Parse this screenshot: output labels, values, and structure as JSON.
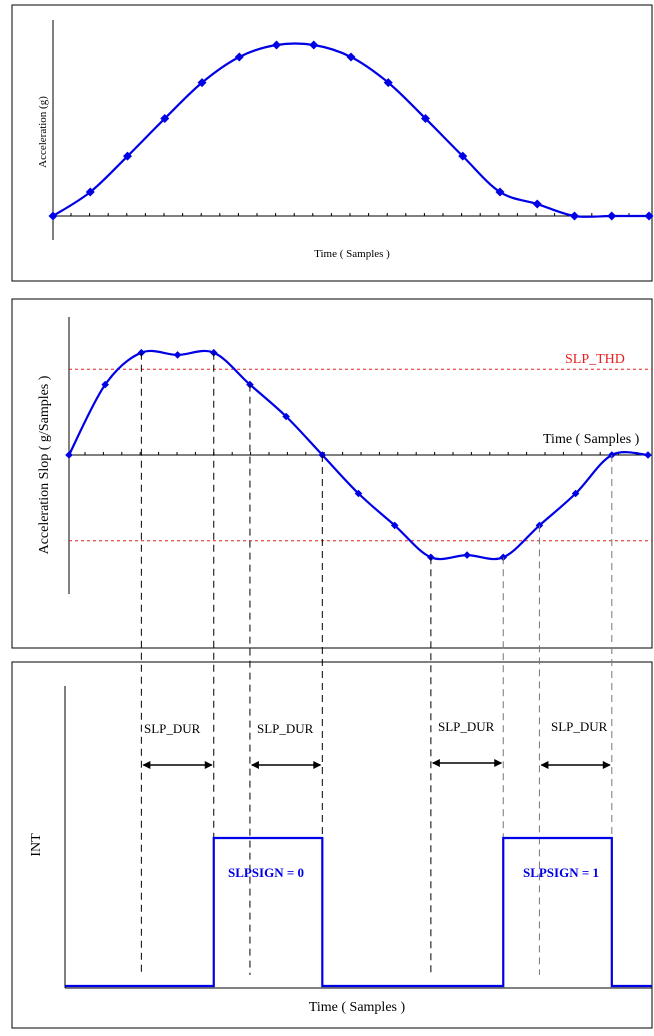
{
  "panel1": {
    "ylabel": "Acceleration (g)",
    "xlabel": "Time ( Samples )",
    "chart_data": {
      "type": "line",
      "x": [
        0,
        1,
        2,
        3,
        4,
        5,
        6,
        7,
        8,
        9,
        10,
        11,
        12,
        13,
        14,
        15,
        16
      ],
      "values": [
        0,
        0.14,
        0.35,
        0.57,
        0.78,
        0.93,
        1.0,
        1.0,
        0.93,
        0.78,
        0.57,
        0.35,
        0.14,
        0.07,
        0.0,
        0.0,
        0.0
      ],
      "xlim": [
        0,
        16
      ],
      "ylim": [
        0,
        1.05
      ]
    },
    "colors": {
      "line": "#0000e6",
      "axis": "#000000"
    }
  },
  "panel2": {
    "ylabel": "Acceleration Slop ( g/Samples )",
    "xlabel": "Time ( Samples )",
    "threshold_label": "SLP_THD",
    "chart_data": {
      "type": "line",
      "x": [
        0,
        1,
        2,
        3,
        4,
        5,
        6,
        7,
        8,
        9,
        10,
        11,
        12,
        13,
        14,
        15,
        16
      ],
      "values": [
        0,
        0.64,
        0.93,
        0.91,
        0.93,
        0.64,
        0.35,
        0.0,
        -0.35,
        -0.64,
        -0.93,
        -0.91,
        -0.93,
        -0.64,
        -0.35,
        0.0,
        0.0
      ],
      "threshold": 0.78,
      "xlim": [
        0,
        16
      ],
      "ylim": [
        -1.22,
        1.22
      ]
    },
    "colors": {
      "line": "#0000e6",
      "threshold": "#e62020",
      "threshold_text": "#e62020"
    }
  },
  "panel3": {
    "ylabel": "INT",
    "xlabel": "Time ( Samples )",
    "dur_labels": [
      "SLP_DUR",
      "SLP_DUR",
      "SLP_DUR",
      "SLP_DUR"
    ],
    "pulses": [
      {
        "label": "SLPSIGN = 0",
        "start": 4,
        "end": 7
      },
      {
        "label": "SLPSIGN = 1",
        "start": 12,
        "end": 15
      }
    ],
    "colors": {
      "signal": "#0000e6"
    }
  }
}
